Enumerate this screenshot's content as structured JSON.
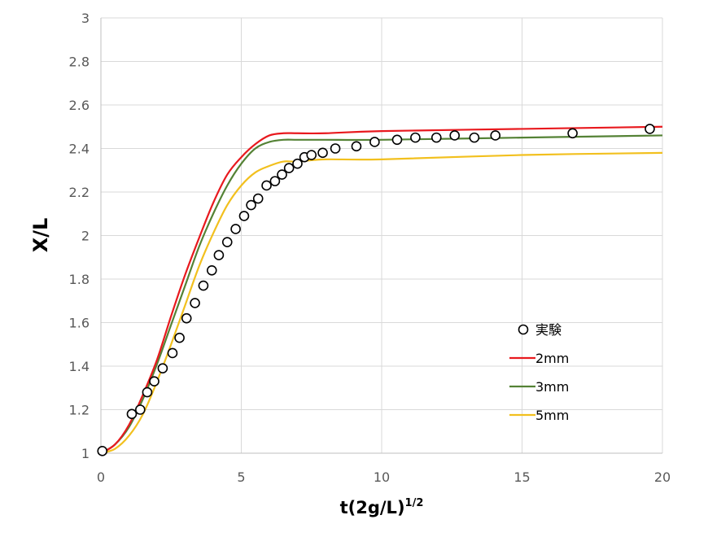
{
  "chart_data": {
    "type": "line",
    "xlabel_main": "t(2g/L)",
    "xlabel_sup": "1/2",
    "ylabel": "X/L",
    "xlim": [
      0,
      20
    ],
    "ylim": [
      1,
      3
    ],
    "xticks": [
      0,
      5,
      10,
      15,
      20
    ],
    "yticks": [
      1,
      1.2,
      1.4,
      1.6,
      1.8,
      2,
      2.2,
      2.4,
      2.6,
      2.8,
      3
    ],
    "grid": true,
    "legend_position": "right",
    "series": [
      {
        "name": "実験",
        "kind": "scatter",
        "color": "#000000",
        "x": [
          0.05,
          1.1,
          1.4,
          1.65,
          1.9,
          2.2,
          2.55,
          2.8,
          3.05,
          3.35,
          3.65,
          3.95,
          4.2,
          4.5,
          4.8,
          5.1,
          5.35,
          5.6,
          5.9,
          6.2,
          6.45,
          6.7,
          7.0,
          7.25,
          7.5,
          7.9,
          8.35,
          9.1,
          9.75,
          10.55,
          11.2,
          11.95,
          12.6,
          13.3,
          14.05,
          16.8,
          19.55
        ],
        "y": [
          1.01,
          1.18,
          1.2,
          1.28,
          1.33,
          1.39,
          1.46,
          1.53,
          1.62,
          1.69,
          1.77,
          1.84,
          1.91,
          1.97,
          2.03,
          2.09,
          2.14,
          2.17,
          2.23,
          2.25,
          2.28,
          2.31,
          2.33,
          2.36,
          2.37,
          2.38,
          2.4,
          2.41,
          2.43,
          2.44,
          2.45,
          2.45,
          2.46,
          2.45,
          2.46,
          2.47,
          2.49
        ]
      },
      {
        "name": "2mm",
        "kind": "line",
        "color": "#e8191e",
        "x": [
          0,
          0.5,
          1,
          1.5,
          2,
          2.5,
          3,
          3.5,
          4,
          4.5,
          5,
          5.5,
          6,
          6.5,
          7,
          8,
          10,
          15,
          20
        ],
        "y": [
          1.0,
          1.04,
          1.13,
          1.27,
          1.43,
          1.63,
          1.82,
          1.99,
          2.15,
          2.28,
          2.36,
          2.42,
          2.46,
          2.47,
          2.47,
          2.47,
          2.48,
          2.49,
          2.5
        ]
      },
      {
        "name": "3mm",
        "kind": "line",
        "color": "#548235",
        "x": [
          0,
          0.5,
          1,
          1.5,
          2,
          2.5,
          3,
          3.5,
          4,
          4.5,
          5,
          5.5,
          6,
          6.5,
          7,
          8,
          10,
          15,
          20
        ],
        "y": [
          1.0,
          1.04,
          1.12,
          1.25,
          1.41,
          1.59,
          1.77,
          1.95,
          2.1,
          2.23,
          2.33,
          2.4,
          2.43,
          2.44,
          2.44,
          2.44,
          2.44,
          2.45,
          2.46
        ]
      },
      {
        "name": "5mm",
        "kind": "line",
        "color": "#f2c01e",
        "x": [
          0,
          0.5,
          1,
          1.5,
          2,
          2.5,
          3,
          3.5,
          4,
          4.5,
          5,
          5.5,
          6,
          6.5,
          7,
          8,
          10,
          15,
          20
        ],
        "y": [
          1.0,
          1.02,
          1.08,
          1.18,
          1.33,
          1.5,
          1.68,
          1.86,
          2.01,
          2.14,
          2.23,
          2.29,
          2.32,
          2.34,
          2.34,
          2.35,
          2.35,
          2.37,
          2.38
        ]
      }
    ]
  }
}
